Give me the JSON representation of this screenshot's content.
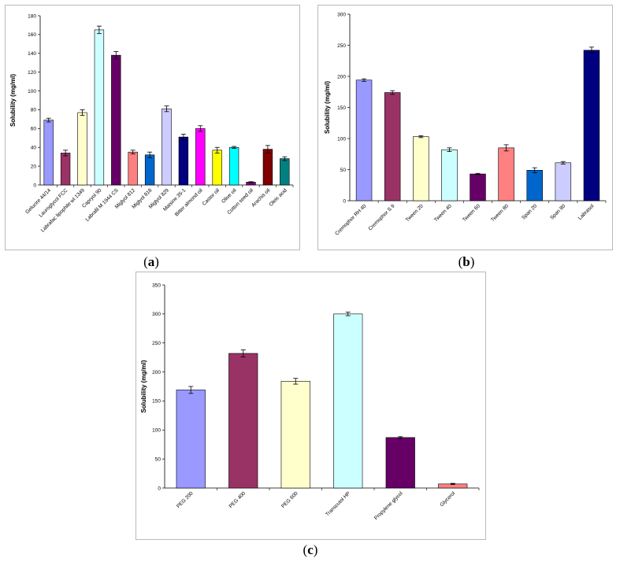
{
  "captions": [
    "(a)",
    "(b)",
    "(c)"
  ],
  "caption_letters": [
    "a",
    "b",
    "c"
  ],
  "chart_data": [
    {
      "type": "bar",
      "panel": "a",
      "title": "",
      "xlabel": "",
      "ylabel": "Solubility (mg/ml)",
      "ylim": [
        0,
        180
      ],
      "yticks": [
        0,
        20,
        40,
        60,
        80,
        100,
        120,
        140,
        160,
        180
      ],
      "categories": [
        "Gelucire 44/14",
        "Lauroglycol FCC",
        "Labrafac lipophile wl 1349",
        "Capryol 90",
        "Labrafil M 1944 CS",
        "Miglyol 812",
        "Miglyol 818",
        "Miglyol 829",
        "Maisine 35-1",
        "Bitter almond oil",
        "Castor oil",
        "Olive oil",
        "Cotton seed oil",
        "Arachis oil",
        "Oleic acid"
      ],
      "tick_labels": [
        "Gelucire 44/14",
        "Lauroglycol FCC",
        "Labrafac lipophile wl 1349",
        "Capryol 90",
        "Labrafil M 1944 CS",
        "Miglyol 812",
        "Miglyol 818",
        "Miglyol 829",
        "Maisine 35-1",
        "Bitter almond oil",
        "Castor oil",
        "Olive oil",
        "Cotton seed oil",
        "Arachis oil",
        "Oleic acid"
      ],
      "values": [
        69,
        34,
        77,
        165,
        138,
        35,
        32,
        81,
        51,
        60,
        37,
        40,
        3,
        38,
        28
      ],
      "errors": [
        2,
        3,
        3,
        4,
        4,
        2,
        3,
        3,
        3,
        3,
        3,
        1,
        0.5,
        4,
        2
      ],
      "colors": [
        "#9999ff",
        "#993366",
        "#ffffcc",
        "#ccffff",
        "#660066",
        "#ff8080",
        "#0066cc",
        "#ccccff",
        "#000080",
        "#ff00ff",
        "#ffff00",
        "#00ffff",
        "#800080",
        "#800000",
        "#008080"
      ]
    },
    {
      "type": "bar",
      "panel": "b",
      "title": "",
      "xlabel": "",
      "ylabel": "Solubility (mg/ml)",
      "ylim": [
        0,
        300
      ],
      "yticks": [
        0,
        50,
        100,
        150,
        200,
        250,
        300
      ],
      "categories": [
        "Cremophor RH 40",
        "Cremophor S 9",
        "Tween 20",
        "Tween 40",
        "Tween 60",
        "Tween 80",
        "Span 20",
        "Span 80",
        "Labrasol"
      ],
      "tick_labels": [
        "Cremophor RH 40",
        "Cremophor S 9",
        "Tween 20",
        "Tween 40",
        "Tween 60",
        "Tween 80",
        "Span 20",
        "Span 80",
        "Labrasol"
      ],
      "values": [
        194,
        174,
        103,
        82,
        43,
        85,
        49,
        61,
        242
      ],
      "errors": [
        2,
        3,
        1.5,
        3,
        1,
        5,
        4,
        2,
        5
      ],
      "colors": [
        "#9999ff",
        "#993366",
        "#ffffcc",
        "#ccffff",
        "#660066",
        "#ff8080",
        "#0066cc",
        "#ccccff",
        "#000080"
      ]
    },
    {
      "type": "bar",
      "panel": "c",
      "title": "",
      "xlabel": "",
      "ylabel": "Solubility (mg/ml)",
      "ylim": [
        0,
        350
      ],
      "yticks": [
        0,
        50,
        100,
        150,
        200,
        250,
        300,
        350
      ],
      "categories": [
        "PEG 200",
        "PEG 400",
        "PEG 600",
        "Transcutol HP",
        "Propylene glycol",
        "Glycerol"
      ],
      "tick_labels": [
        "PEG 200",
        "PEG 400",
        "PEG 600",
        "Transcutol HP",
        "Propylene glycol",
        "Glycerol"
      ],
      "values": [
        169,
        232,
        184,
        300,
        87,
        7
      ],
      "errors": [
        6,
        6,
        5,
        3,
        1.5,
        1
      ],
      "colors": [
        "#9999ff",
        "#993366",
        "#ffffcc",
        "#ccffff",
        "#660066",
        "#ff8080"
      ]
    }
  ]
}
